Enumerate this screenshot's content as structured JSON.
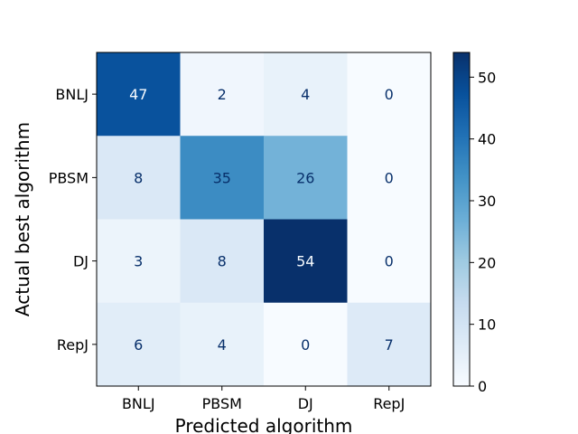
{
  "chart_data": {
    "type": "heatmap",
    "title": "",
    "xlabel": "Predicted algorithm",
    "ylabel": "Actual best algorithm",
    "x_categories": [
      "BNLJ",
      "PBSM",
      "DJ",
      "RepJ"
    ],
    "y_categories": [
      "BNLJ",
      "PBSM",
      "DJ",
      "RepJ"
    ],
    "values": [
      [
        47,
        2,
        4,
        0
      ],
      [
        8,
        35,
        26,
        0
      ],
      [
        3,
        8,
        54,
        0
      ],
      [
        6,
        4,
        0,
        7
      ]
    ],
    "colormap": "Blues",
    "color_range": [
      0,
      54
    ],
    "colorbar_ticks": [
      0,
      10,
      20,
      30,
      40,
      50
    ],
    "grid": false,
    "legend": "colorbar-right"
  }
}
